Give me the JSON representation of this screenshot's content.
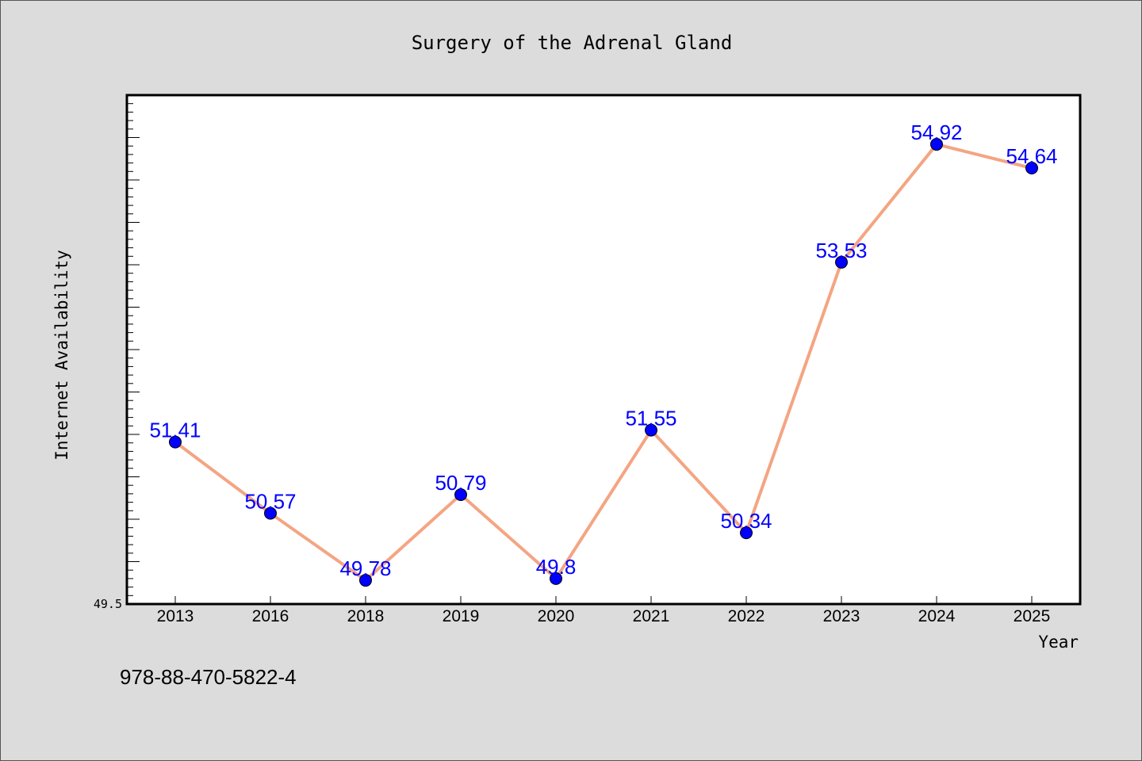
{
  "chart_data": {
    "type": "line",
    "title": "Surgery of the Adrenal Gland",
    "xlabel": "Year",
    "ylabel": "Internet Availability",
    "categories": [
      "2013",
      "2016",
      "2018",
      "2019",
      "2020",
      "2021",
      "2022",
      "2023",
      "2024",
      "2025"
    ],
    "series": [
      {
        "values": [
          51.41,
          50.57,
          49.78,
          50.79,
          49.8,
          51.55,
          50.34,
          53.53,
          54.92,
          54.64
        ],
        "labels": [
          "51.41",
          "50.57",
          "49.78",
          "50.79",
          "49.8",
          "51.55",
          "50.34",
          "53.53",
          "54.92",
          "54.64"
        ]
      }
    ],
    "ylim": [
      49.5,
      55.5
    ],
    "ytick_labels": [
      "49.5"
    ],
    "grid": false,
    "legend": "none",
    "colors": {
      "line": "#f4a582",
      "marker": "#0000ff",
      "data_label": "#0000ff",
      "plot_background": "#ffffff",
      "page_background": "#dcdcdc"
    }
  },
  "footer_text": "978-88-470-5822-4"
}
